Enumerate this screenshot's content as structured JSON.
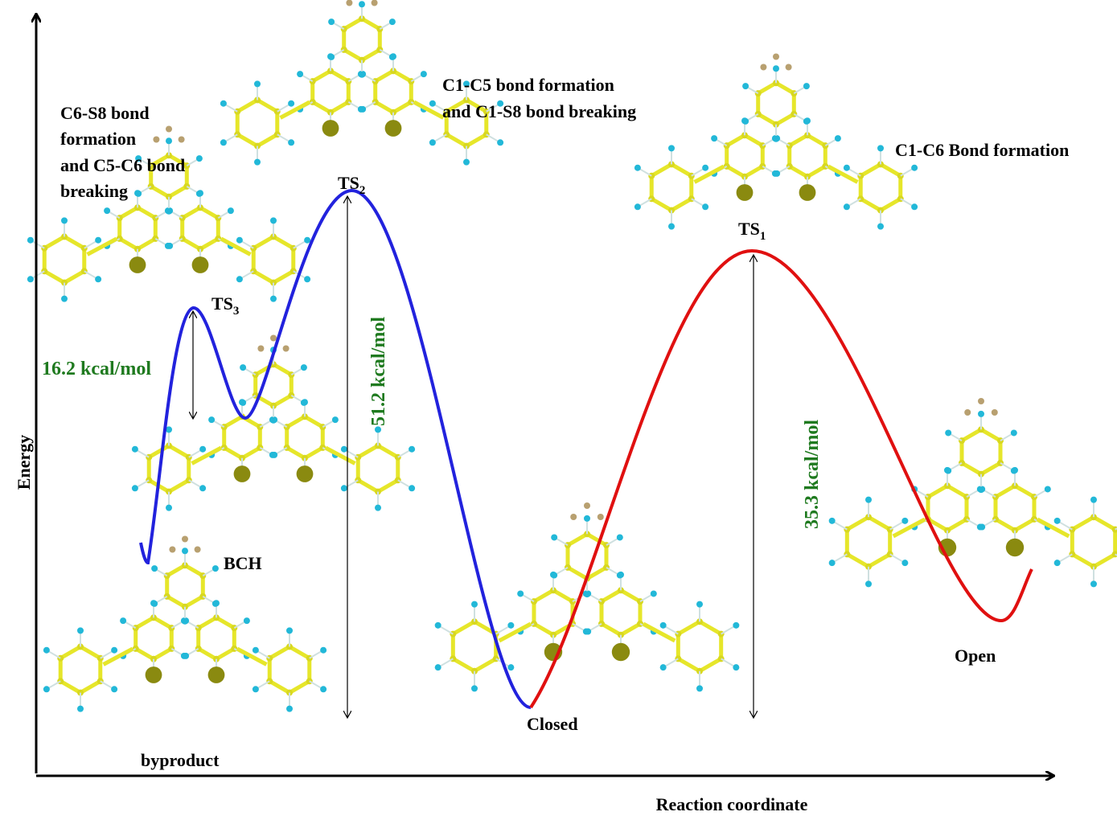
{
  "axes": {
    "y_label": "Energy",
    "x_label": "Reaction coordinate"
  },
  "annotations": {
    "ts3_process": [
      "C6-S8 bond",
      "formation",
      "and  C5-C6 bond",
      "breaking"
    ],
    "ts2_process": [
      "C1-C5 bond formation",
      "and C1-S8 bond breaking"
    ],
    "ts1_process": [
      "C1-C6 Bond formation"
    ]
  },
  "states": [
    {
      "label": "TS",
      "sub": "2"
    },
    {
      "label": "TS",
      "sub": "3"
    },
    {
      "label": "TS",
      "sub": "1"
    }
  ],
  "barriers": [
    "16.2 kcal/mol",
    "51.2 kcal/mol",
    "35.3 kcal/mol"
  ],
  "species": [
    "BCH",
    "Closed",
    "Open",
    "byproduct"
  ]
}
